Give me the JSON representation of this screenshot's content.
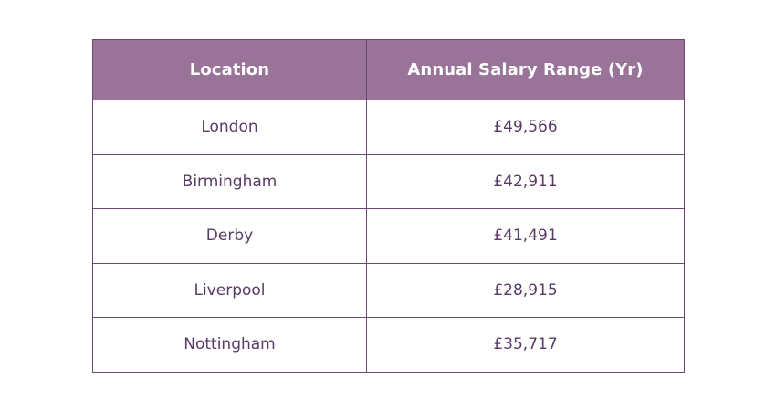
{
  "table": {
    "headers": {
      "location": "Location",
      "salary": "Annual Salary Range (Yr)"
    },
    "rows": [
      {
        "location": "London",
        "salary": "£49,566"
      },
      {
        "location": "Birmingham",
        "salary": "£42,911"
      },
      {
        "location": "Derby",
        "salary": "£41,491"
      },
      {
        "location": "Liverpool",
        "salary": "£28,915"
      },
      {
        "location": "Nottingham",
        "salary": "£35,717"
      }
    ]
  },
  "colors": {
    "header_background": "#9a7399",
    "header_text": "#ffffff",
    "body_text": "#5a3a66",
    "border": "#6b4a72"
  }
}
